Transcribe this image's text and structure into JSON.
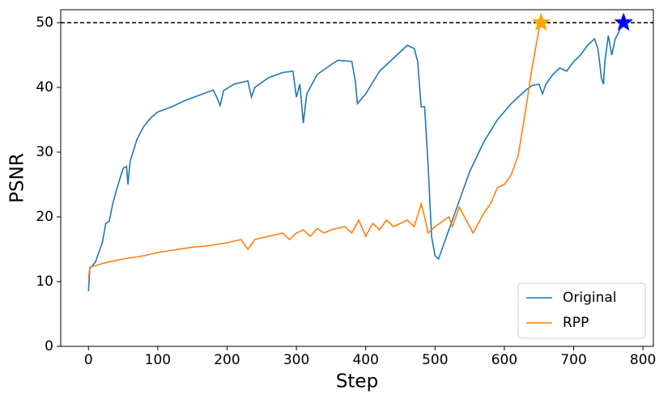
{
  "chart_data": {
    "type": "line",
    "xlabel": "Step",
    "ylabel": "PSNR",
    "xlim": [
      -40,
      815
    ],
    "ylim": [
      0,
      52
    ],
    "xticks": [
      0,
      100,
      200,
      300,
      400,
      500,
      600,
      700,
      800
    ],
    "yticks": [
      0,
      10,
      20,
      30,
      40,
      50
    ],
    "legend": "lower right",
    "hline": {
      "value": 50,
      "color": "#000000"
    },
    "series": [
      {
        "name": "Original",
        "color": "#1f77b4",
        "x": [
          0,
          2,
          10,
          20,
          25,
          30,
          35,
          40,
          50,
          55,
          57,
          60,
          70,
          80,
          90,
          100,
          120,
          140,
          160,
          180,
          185,
          190,
          195,
          210,
          230,
          235,
          240,
          260,
          280,
          295,
          300,
          305,
          310,
          315,
          330,
          350,
          360,
          380,
          385,
          388,
          400,
          420,
          440,
          460,
          470,
          475,
          480,
          485,
          490,
          495,
          500,
          505,
          510,
          520,
          530,
          550,
          570,
          590,
          610,
          630,
          640,
          650,
          655,
          660,
          670,
          680,
          690,
          700,
          710,
          720,
          730,
          735,
          740,
          743,
          745,
          750,
          755,
          760,
          765,
          770
        ],
        "values": [
          8.5,
          12,
          13,
          16,
          19,
          19.3,
          22,
          24,
          27.5,
          27.8,
          25,
          28.5,
          32,
          34,
          35.3,
          36.2,
          37,
          38,
          38.8,
          39.6,
          38.5,
          37.2,
          39.5,
          40.5,
          41,
          38.5,
          40,
          41.5,
          42.3,
          42.5,
          38.5,
          40.5,
          34.5,
          39,
          42,
          43.5,
          44.2,
          44,
          41,
          37.5,
          39,
          42.5,
          44.5,
          46.5,
          46,
          44,
          37,
          37,
          28,
          17,
          14,
          13.5,
          15,
          18,
          21,
          27,
          31.5,
          35,
          37.5,
          39.5,
          40.3,
          40.5,
          39,
          40.5,
          42,
          43,
          42.5,
          44,
          45,
          46.5,
          47.5,
          46,
          41.5,
          40.5,
          44,
          48,
          45,
          47.5,
          48.5,
          50
        ],
        "end_marker": {
          "x": 772,
          "y": 50,
          "color": "#0000ff"
        }
      },
      {
        "name": "RPP",
        "color": "#ff7f0e",
        "x": [
          0,
          2,
          20,
          50,
          80,
          100,
          130,
          150,
          170,
          200,
          220,
          230,
          240,
          260,
          280,
          290,
          300,
          310,
          320,
          330,
          340,
          350,
          370,
          380,
          390,
          400,
          410,
          420,
          430,
          440,
          460,
          470,
          480,
          485,
          490,
          500,
          520,
          525,
          535,
          545,
          555,
          560,
          570,
          580,
          590,
          600,
          610,
          620,
          630,
          640,
          650,
          653
        ],
        "values": [
          10.5,
          12.2,
          12.8,
          13.5,
          14,
          14.5,
          15,
          15.3,
          15.5,
          16,
          16.5,
          15,
          16.5,
          17,
          17.5,
          16.5,
          17.5,
          18,
          17,
          18.2,
          17.5,
          18,
          18.5,
          17.5,
          19.5,
          17,
          19,
          18,
          19.5,
          18.5,
          19.5,
          18.5,
          22,
          20,
          17.5,
          18.5,
          20,
          18.5,
          21.5,
          19.5,
          17.5,
          18.5,
          20.5,
          22,
          24.5,
          25,
          26.5,
          29.5,
          36,
          43,
          49,
          50
        ],
        "end_marker": {
          "x": 653,
          "y": 50,
          "color": "#ffa500"
        }
      }
    ]
  }
}
